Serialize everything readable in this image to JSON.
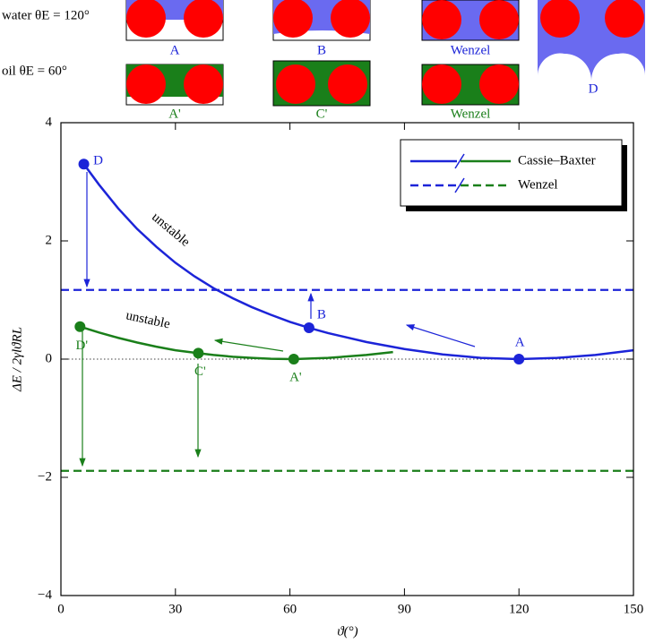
{
  "chart_data": {
    "type": "line",
    "xlabel": "ϑ(°)",
    "ylabel": "ΔE / 2γlϑRL",
    "xlim": [
      0,
      150
    ],
    "xticks": [
      0,
      30,
      60,
      90,
      120,
      150
    ],
    "ylim": [
      -4,
      4
    ],
    "yticks": [
      {
        "value": -4,
        "label": "−4"
      },
      {
        "value": -2,
        "label": "−2"
      },
      0,
      2,
      4
    ],
    "series": [
      {
        "color": "#1c24d8",
        "style": "solid",
        "x": [
          6,
          10,
          15,
          20,
          25,
          30,
          35,
          40,
          45,
          50,
          55,
          60,
          65,
          70,
          80,
          90,
          100,
          110,
          120,
          130,
          140,
          150
        ],
        "values": [
          3.3,
          2.95,
          2.55,
          2.2,
          1.9,
          1.63,
          1.4,
          1.2,
          1.03,
          0.88,
          0.75,
          0.63,
          0.53,
          0.44,
          0.29,
          0.17,
          0.08,
          0.02,
          0,
          0.02,
          0.07,
          0.15
        ]
      },
      {
        "color": "#1a7f1a",
        "style": "solid",
        "x": [
          5,
          10,
          15,
          20,
          25,
          30,
          36,
          40,
          45,
          50,
          55,
          61,
          70,
          80,
          87
        ],
        "values": [
          0.55,
          0.45,
          0.36,
          0.28,
          0.21,
          0.15,
          0.1,
          0.07,
          0.04,
          0.02,
          0.005,
          0,
          0.02,
          0.07,
          0.12
        ]
      }
    ],
    "hlines": [
      {
        "y": 1.17,
        "color": "#1c24d8"
      },
      {
        "y": -1.89,
        "color": "#1a7f1a"
      }
    ],
    "points": [
      {
        "x": 6,
        "y": 3.3,
        "label": "D",
        "color": "#1c24d8"
      },
      {
        "x": 65,
        "y": 0.53,
        "label": "B",
        "color": "#1c24d8"
      },
      {
        "x": 120,
        "y": 0,
        "label": "A",
        "color": "#1c24d8"
      },
      {
        "x": 5,
        "y": 0.55,
        "label": "D'",
        "color": "#1a7f1a"
      },
      {
        "x": 36,
        "y": 0.1,
        "label": "C'",
        "color": "#1a7f1a"
      },
      {
        "x": 61,
        "y": 0,
        "label": "A'",
        "color": "#1a7f1a"
      }
    ],
    "annotations": [
      "unstable",
      "unstable"
    ],
    "legend": [
      "Cassie–Baxter",
      "Wenzel"
    ],
    "insets": {
      "water": "water θE = 120°",
      "oil": "oil θE = 60°",
      "labels": [
        "A",
        "B",
        "Wenzel",
        "A'",
        "C'",
        "Wenzel",
        "D"
      ]
    }
  }
}
